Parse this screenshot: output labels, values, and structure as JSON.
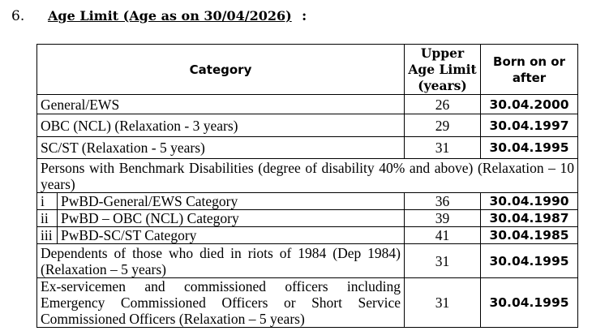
{
  "section": {
    "number": "6.",
    "title": "Age Limit (Age as on 30/04/2026)",
    "suffix": ":"
  },
  "table": {
    "headers": [
      "Category",
      "Upper Age Limit (years)",
      "Born on or after"
    ],
    "rows": [
      [
        "General/EWS",
        26,
        "30.04.2000"
      ],
      [
        "OBC (NCL) (Relaxation - 3 years)",
        29,
        "30.04.1997"
      ],
      [
        "SC/ST (Relaxation - 5 years)",
        31,
        "30.04.1995"
      ]
    ],
    "pwbd_heading": "Persons with Benchmark Disabilities (degree of disability 40% and above) (Relaxation – 10 years)",
    "pwbd_rows": [
      [
        "i",
        "PwBD-General/EWS Category",
        36,
        "30.04.1990"
      ],
      [
        "ii",
        "PwBD – OBC (NCL) Category",
        39,
        "30.04.1987"
      ],
      [
        "iii",
        "PwBD-SC/ST Category",
        41,
        "30.04.1985"
      ]
    ],
    "other_rows": [
      [
        "Dependents of those who died in riots of 1984 (Dep 1984) (Relaxation – 5 years)",
        31,
        "30.04.1995"
      ],
      [
        "Ex-servicemen and commissioned officers including Emergency Commissioned Officers or Short Service Commissioned Officers (Relaxation – 5 years)",
        31,
        "30.04.1995"
      ]
    ]
  }
}
